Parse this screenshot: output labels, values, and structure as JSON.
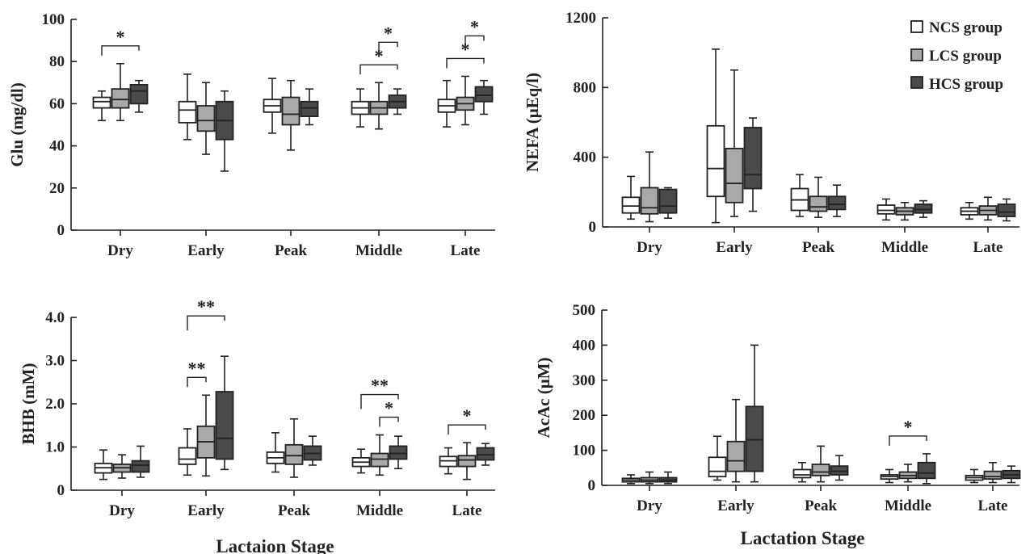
{
  "legend": {
    "entries": [
      "NCS group",
      "LCS group",
      "HCS group"
    ],
    "colors": [
      "#ffffff",
      "#a9a9a9",
      "#4a4a4a"
    ]
  },
  "chart_data": [
    {
      "type": "box",
      "ylabel": "Glu (mg/dl)",
      "xlabel": "",
      "ylim": [
        0,
        100
      ],
      "yticks": [
        "0",
        "20",
        "40",
        "60",
        "80",
        "100"
      ],
      "categories": [
        "Dry",
        "Early",
        "Peak",
        "Middle",
        "Late"
      ],
      "series": [
        {
          "name": "NCS group",
          "boxes": [
            [
              52,
              58,
              61,
              63,
              66
            ],
            [
              43,
              51,
              57,
              61,
              74
            ],
            [
              46,
              56,
              59,
              62,
              72
            ],
            [
              49,
              55,
              58,
              61,
              67
            ],
            [
              49,
              56,
              59,
              62,
              71
            ]
          ]
        },
        {
          "name": "LCS group",
          "boxes": [
            [
              52,
              58,
              62,
              67,
              79
            ],
            [
              36,
              47,
              52,
              59,
              70
            ],
            [
              38,
              50,
              55,
              63,
              71
            ],
            [
              48,
              55,
              58,
              61,
              70
            ],
            [
              50,
              57,
              60,
              63,
              73
            ]
          ]
        },
        {
          "name": "HCS group",
          "boxes": [
            [
              56,
              60,
              66,
              69,
              71
            ],
            [
              28,
              43,
              52,
              61,
              66
            ],
            [
              50,
              54,
              58,
              61,
              67
            ],
            [
              55,
              58,
              61,
              64,
              67
            ],
            [
              55,
              61,
              64,
              68,
              71
            ]
          ]
        }
      ],
      "annotations": [
        {
          "category": "Dry",
          "from": 0,
          "to": 2,
          "label": "*",
          "level": 0
        },
        {
          "category": "Middle",
          "from": 0,
          "to": 2,
          "label": "*",
          "level": 0
        },
        {
          "category": "Middle",
          "from": 1,
          "to": 2,
          "label": "*",
          "level": 1
        },
        {
          "category": "Late",
          "from": 0,
          "to": 2,
          "label": "*",
          "level": 0
        },
        {
          "category": "Late",
          "from": 1,
          "to": 2,
          "label": "*",
          "level": 1
        }
      ]
    },
    {
      "type": "box",
      "ylabel": "NEFA (μEq/l)",
      "xlabel": "",
      "ylim": [
        0,
        1200
      ],
      "yticks": [
        "0",
        "400",
        "800",
        "1200"
      ],
      "categories": [
        "Dry",
        "Early",
        "Peak",
        "Middle",
        "Late"
      ],
      "series": [
        {
          "name": "NCS group",
          "boxes": [
            [
              45,
              80,
              120,
              170,
              290
            ],
            [
              25,
              175,
              335,
              580,
              1020
            ],
            [
              60,
              95,
              155,
              220,
              300
            ],
            [
              40,
              75,
              95,
              125,
              160
            ],
            [
              45,
              70,
              90,
              110,
              140
            ]
          ]
        },
        {
          "name": "LCS group",
          "boxes": [
            [
              30,
              75,
              110,
              225,
              430
            ],
            [
              60,
              140,
              250,
              450,
              900
            ],
            [
              55,
              90,
              115,
              175,
              285
            ],
            [
              40,
              70,
              90,
              110,
              140
            ],
            [
              40,
              70,
              95,
              120,
              170
            ]
          ]
        },
        {
          "name": "HCS group",
          "boxes": [
            [
              50,
              80,
              120,
              215,
              225
            ],
            [
              90,
              220,
              300,
              570,
              625
            ],
            [
              60,
              100,
              130,
              175,
              240
            ],
            [
              55,
              80,
              100,
              130,
              150
            ],
            [
              35,
              60,
              85,
              130,
              160
            ]
          ]
        }
      ],
      "annotations": []
    },
    {
      "type": "box",
      "ylabel": "BHB (mM)",
      "xlabel": "Lactaion Stage",
      "ylim": [
        0,
        4.0
      ],
      "yticks": [
        "0",
        "1.0",
        "2.0",
        "3.0",
        "4.0"
      ],
      "categories": [
        "Dry",
        "Early",
        "Peak",
        "Middle",
        "Late"
      ],
      "series": [
        {
          "name": "NCS group",
          "boxes": [
            [
              0.25,
              0.4,
              0.52,
              0.62,
              0.93
            ],
            [
              0.35,
              0.6,
              0.72,
              0.98,
              1.42
            ],
            [
              0.42,
              0.62,
              0.75,
              0.88,
              1.33
            ],
            [
              0.4,
              0.55,
              0.65,
              0.75,
              0.95
            ],
            [
              0.38,
              0.55,
              0.68,
              0.78,
              0.98
            ]
          ]
        },
        {
          "name": "LCS group",
          "boxes": [
            [
              0.28,
              0.42,
              0.52,
              0.6,
              0.82
            ],
            [
              0.33,
              0.75,
              1.12,
              1.48,
              2.2
            ],
            [
              0.3,
              0.6,
              0.8,
              1.05,
              1.65
            ],
            [
              0.35,
              0.55,
              0.72,
              0.85,
              1.28
            ],
            [
              0.25,
              0.55,
              0.7,
              0.8,
              1.1
            ]
          ]
        },
        {
          "name": "HCS group",
          "boxes": [
            [
              0.3,
              0.42,
              0.58,
              0.68,
              1.02
            ],
            [
              0.48,
              0.72,
              1.2,
              2.28,
              3.1
            ],
            [
              0.58,
              0.7,
              0.85,
              1.02,
              1.25
            ],
            [
              0.5,
              0.72,
              0.85,
              1.02,
              1.25
            ],
            [
              0.58,
              0.7,
              0.82,
              0.98,
              1.08
            ]
          ]
        }
      ],
      "annotations": [
        {
          "category": "Early",
          "from": 0,
          "to": 1,
          "label": "**",
          "level": 0
        },
        {
          "category": "Early",
          "from": 0,
          "to": 2,
          "label": "**",
          "level": 1
        },
        {
          "category": "Middle",
          "from": 0,
          "to": 2,
          "label": "**",
          "level": 1
        },
        {
          "category": "Middle",
          "from": 1,
          "to": 2,
          "label": "*",
          "level": 0
        },
        {
          "category": "Late",
          "from": 0,
          "to": 2,
          "label": "*",
          "level": 0
        }
      ]
    },
    {
      "type": "box",
      "ylabel": "AcAc (μM)",
      "xlabel": "Lactation Stage",
      "ylim": [
        0,
        500
      ],
      "yticks": [
        "0",
        "100",
        "200",
        "300",
        "400",
        "500"
      ],
      "categories": [
        "Dry",
        "Early",
        "Peak",
        "Middle",
        "Late"
      ],
      "series": [
        {
          "name": "NCS group",
          "boxes": [
            [
              5,
              10,
              15,
              20,
              30
            ],
            [
              15,
              25,
              40,
              80,
              140
            ],
            [
              10,
              22,
              30,
              45,
              65
            ],
            [
              8,
              18,
              25,
              30,
              45
            ],
            [
              8,
              15,
              22,
              28,
              45
            ]
          ]
        },
        {
          "name": "LCS group",
          "boxes": [
            [
              5,
              10,
              15,
              22,
              38
            ],
            [
              10,
              40,
              70,
              125,
              245
            ],
            [
              10,
              28,
              38,
              60,
              112
            ],
            [
              10,
              20,
              28,
              38,
              60
            ],
            [
              8,
              18,
              25,
              40,
              65
            ]
          ]
        },
        {
          "name": "HCS group",
          "boxes": [
            [
              5,
              10,
              15,
              22,
              38
            ],
            [
              10,
              40,
              130,
              225,
              400
            ],
            [
              15,
              30,
              40,
              55,
              85
            ],
            [
              5,
              20,
              35,
              65,
              90
            ],
            [
              8,
              20,
              30,
              42,
              55
            ]
          ]
        }
      ],
      "annotations": [
        {
          "category": "Middle",
          "from": 0,
          "to": 2,
          "label": "*",
          "level": 0
        }
      ]
    }
  ]
}
